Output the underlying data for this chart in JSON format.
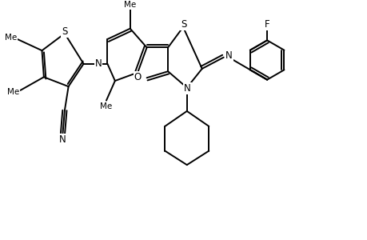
{
  "bg_color": "#ffffff",
  "line_color": "#000000",
  "lw": 1.4,
  "fs": 8.5,
  "fs_small": 7.5,
  "xlim": [
    0,
    9.5
  ],
  "ylim": [
    -2.8,
    3.2
  ]
}
